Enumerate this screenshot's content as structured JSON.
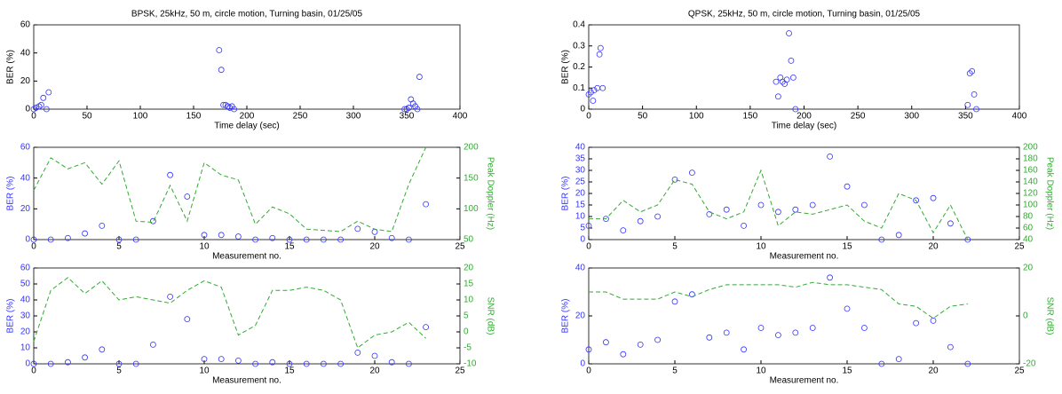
{
  "chart_data": [
    {
      "type": "scatter",
      "title": "BPSK, 25kHz, 50 m, circle motion, Turning basin, 01/25/05",
      "xlabel": "Time delay (sec)",
      "ylabel": "BER (%)",
      "xlim": [
        0,
        400
      ],
      "xticks": [
        0,
        50,
        100,
        150,
        200,
        250,
        300,
        350,
        400
      ],
      "ylim": [
        0,
        60
      ],
      "yticks": [
        0,
        20,
        40,
        60
      ],
      "x": [
        0,
        2,
        5,
        7,
        9,
        12,
        14,
        174,
        176,
        178,
        180,
        182,
        184,
        186,
        188,
        348,
        350,
        352,
        354,
        356,
        358,
        360,
        362
      ],
      "series": [
        {
          "color": "#3333ff",
          "values": [
            0,
            1,
            2,
            3,
            8,
            0,
            12,
            42,
            28,
            3,
            3,
            2,
            1,
            2,
            0,
            0,
            0,
            1,
            7,
            4,
            2,
            0,
            23
          ]
        }
      ]
    },
    {
      "type": "scatter",
      "title": "QPSK, 25kHz, 50 m, circle motion, Turning basin, 01/25/05",
      "xlabel": "Time delay (sec)",
      "ylabel": "BER (%)",
      "xlim": [
        0,
        400
      ],
      "xticks": [
        0,
        50,
        100,
        150,
        200,
        250,
        300,
        350,
        400
      ],
      "ylim": [
        0,
        0.4
      ],
      "yticks": [
        0,
        0.1,
        0.2,
        0.3,
        0.4
      ],
      "x": [
        0,
        2,
        4,
        5,
        8,
        10,
        11,
        13,
        174,
        176,
        178,
        180,
        182,
        184,
        186,
        188,
        190,
        192,
        352,
        354,
        356,
        358,
        360
      ],
      "series": [
        {
          "color": "#3333ff",
          "values": [
            0.07,
            0.08,
            0.04,
            0.09,
            0.1,
            0.26,
            0.29,
            0.1,
            0.13,
            0.06,
            0.15,
            0.13,
            0.12,
            0.14,
            0.36,
            0.23,
            0.15,
            0,
            0.02,
            0.17,
            0.18,
            0.07,
            0
          ]
        }
      ]
    },
    {
      "type": "combo",
      "xlabel": "Measurement no.",
      "ylabel": "BER (%)",
      "y2label": "Peak Doppler (Hz)",
      "xlim": [
        0,
        25
      ],
      "xticks": [
        0,
        5,
        10,
        15,
        20,
        25
      ],
      "ylim": [
        0,
        60
      ],
      "yticks": [
        0,
        20,
        40,
        60
      ],
      "y2lim": [
        50,
        200
      ],
      "y2ticks": [
        50,
        100,
        150,
        200
      ],
      "x": [
        0,
        1,
        2,
        3,
        4,
        5,
        6,
        7,
        8,
        9,
        10,
        11,
        12,
        13,
        14,
        15,
        16,
        17,
        18,
        19,
        20,
        21,
        22,
        23
      ],
      "series": [
        {
          "color": "#3333ff",
          "values": [
            0,
            0,
            1,
            4,
            9,
            0,
            0,
            12,
            42,
            28,
            3,
            3,
            2,
            0,
            1,
            0,
            0,
            0,
            0,
            7,
            5,
            1,
            0,
            23
          ]
        },
        {
          "color": "#33aa33",
          "axis": "y2",
          "values": [
            130,
            183,
            165,
            175,
            140,
            178,
            80,
            78,
            138,
            80,
            175,
            155,
            147,
            75,
            103,
            92,
            67,
            65,
            63,
            80,
            67,
            63,
            140,
            200
          ]
        }
      ]
    },
    {
      "type": "combo",
      "xlabel": "Measurement no.",
      "ylabel": "BER (%)",
      "y2label": "Peak Doppler (Hz)",
      "xlim": [
        0,
        25
      ],
      "xticks": [
        0,
        5,
        10,
        15,
        20,
        25
      ],
      "ylim": [
        0,
        40
      ],
      "yticks": [
        0,
        5,
        10,
        15,
        20,
        25,
        30,
        35,
        40
      ],
      "y2lim": [
        40,
        200
      ],
      "y2ticks": [
        40,
        60,
        80,
        100,
        120,
        140,
        160,
        180,
        200
      ],
      "x": [
        0,
        1,
        2,
        3,
        4,
        5,
        6,
        7,
        8,
        9,
        10,
        11,
        12,
        13,
        14,
        15,
        16,
        17,
        18,
        19,
        20,
        21,
        22
      ],
      "series": [
        {
          "color": "#3333ff",
          "values": [
            6,
            9,
            4,
            8,
            10,
            26,
            29,
            11,
            13,
            6,
            15,
            12,
            13,
            15,
            36,
            23,
            15,
            0,
            2,
            17,
            18,
            7,
            0
          ]
        },
        {
          "color": "#33aa33",
          "axis": "y2",
          "values": [
            76,
            76,
            108,
            88,
            100,
            144,
            136,
            88,
            76,
            88,
            160,
            64,
            88,
            84,
            92,
            100,
            72,
            60,
            120,
            108,
            52,
            100,
            40
          ]
        }
      ]
    },
    {
      "type": "combo",
      "xlabel": "Measurement no.",
      "ylabel": "BER (%)",
      "y2label": "SNR (dB)",
      "xlim": [
        0,
        25
      ],
      "xticks": [
        0,
        5,
        10,
        15,
        20,
        25
      ],
      "ylim": [
        0,
        60
      ],
      "yticks": [
        0,
        10,
        20,
        30,
        40,
        50,
        60
      ],
      "y2lim": [
        -10,
        20
      ],
      "y2ticks": [
        -10,
        -5,
        0,
        5,
        10,
        15,
        20
      ],
      "x": [
        0,
        1,
        2,
        3,
        4,
        5,
        6,
        7,
        8,
        9,
        10,
        11,
        12,
        13,
        14,
        15,
        16,
        17,
        18,
        19,
        20,
        21,
        22,
        23
      ],
      "series": [
        {
          "color": "#3333ff",
          "values": [
            0,
            0,
            1,
            4,
            9,
            0,
            0,
            12,
            42,
            28,
            3,
            3,
            2,
            0,
            1,
            0,
            0,
            0,
            0,
            7,
            5,
            1,
            0,
            23
          ]
        },
        {
          "color": "#33aa33",
          "axis": "y2",
          "values": [
            -3,
            13,
            17,
            12,
            16,
            10,
            11,
            10,
            9,
            13,
            16,
            14,
            -1,
            2,
            13,
            13,
            14,
            13,
            10,
            -5,
            -1,
            0,
            3,
            -2
          ]
        }
      ]
    },
    {
      "type": "combo",
      "xlabel": "Measurement no.",
      "ylabel": "BER (%)",
      "y2label": "SNR (dB)",
      "xlim": [
        0,
        25
      ],
      "xticks": [
        0,
        5,
        10,
        15,
        20,
        25
      ],
      "ylim": [
        0,
        40
      ],
      "yticks": [
        0,
        20,
        40
      ],
      "y2lim": [
        -20,
        20
      ],
      "y2ticks": [
        -20,
        0,
        20
      ],
      "x": [
        0,
        1,
        2,
        3,
        4,
        5,
        6,
        7,
        8,
        9,
        10,
        11,
        12,
        13,
        14,
        15,
        16,
        17,
        18,
        19,
        20,
        21,
        22
      ],
      "series": [
        {
          "color": "#3333ff",
          "values": [
            6,
            9,
            4,
            8,
            10,
            26,
            29,
            11,
            13,
            6,
            15,
            12,
            13,
            15,
            36,
            23,
            15,
            0,
            2,
            17,
            18,
            7,
            0
          ]
        },
        {
          "color": "#33aa33",
          "axis": "y2",
          "values": [
            10,
            10,
            7,
            7,
            7,
            10,
            8,
            11,
            13,
            13,
            13,
            13,
            12,
            14,
            13,
            13,
            12,
            11,
            5,
            4,
            -1,
            4,
            5
          ]
        }
      ]
    }
  ]
}
